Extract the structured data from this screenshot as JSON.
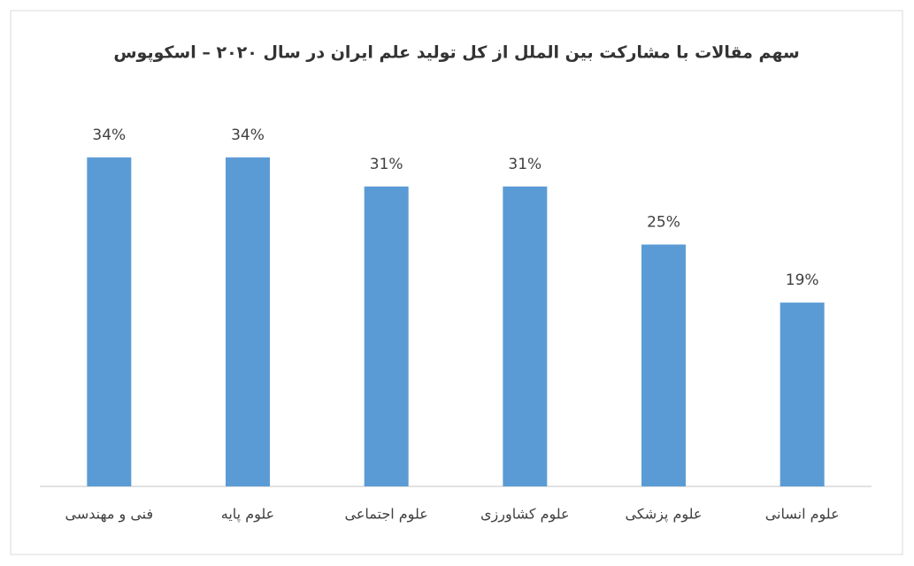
{
  "chart_data": {
    "type": "bar",
    "title": "سهم مقالات با مشارکت بین الملل از کل تولید علم ایران در سال ۲۰۲۰ – اسکوپوس",
    "categories": [
      "فنی و مهندسی",
      "علوم پایه",
      "علوم اجتماعی",
      "علوم کشاورزی",
      "علوم پزشکی",
      "علوم انسانی"
    ],
    "values": [
      34,
      34,
      31,
      31,
      25,
      19
    ],
    "value_labels": [
      "34%",
      "34%",
      "31%",
      "31%",
      "25%",
      "19%"
    ],
    "color": "#5b9bd5"
  }
}
